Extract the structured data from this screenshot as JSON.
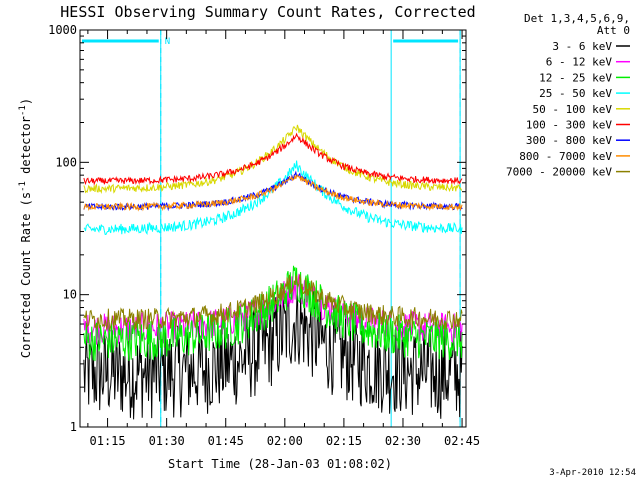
{
  "chart_data": {
    "type": "line",
    "title": "HESSI Observing Summary Count Rates, Corrected",
    "xlabel": "Start Time (28-Jan-03 01:08:02)",
    "ylabel": "Corrected Count Rate (s⁻¹ detector⁻¹)",
    "yscale": "log",
    "ylim": [
      1,
      1000
    ],
    "xlim_minutes": [
      68,
      166
    ],
    "x_ticks": [
      "01:15",
      "01:30",
      "01:45",
      "02:00",
      "02:15",
      "02:30",
      "02:45"
    ],
    "y_ticks": [
      "1",
      "10",
      "100",
      "1000"
    ],
    "legend_header": [
      "Det 1,3,4,5,6,9,",
      "Att 0"
    ],
    "legend_position": "right",
    "footer": "3-Apr-2010 12:54",
    "flag_label": "N",
    "night_periods": [
      [
        68,
        88.5
      ],
      [
        147,
        164.5
      ]
    ],
    "series": [
      {
        "name": "3 - 6 keV",
        "color": "#000000",
        "base": 2.5,
        "peak": 6.5,
        "noise": 0.35
      },
      {
        "name": "6 - 12 keV",
        "color": "#ff00ff",
        "base": 5.5,
        "peak": 12,
        "noise": 0.12
      },
      {
        "name": "12 - 25 keV",
        "color": "#00ee00",
        "base": 4.5,
        "peak": 13,
        "noise": 0.16
      },
      {
        "name": "25 - 50 keV",
        "color": "#00ffff",
        "base": 31,
        "peak": 95,
        "noise": 0.04
      },
      {
        "name": "50 - 100 keV",
        "color": "#d8d800",
        "base": 63,
        "peak": 185,
        "noise": 0.03
      },
      {
        "name": "100 - 300 keV",
        "color": "#ff0000",
        "base": 72,
        "peak": 160,
        "noise": 0.025
      },
      {
        "name": "300 - 800 keV",
        "color": "#0000ff",
        "base": 46,
        "peak": 82,
        "noise": 0.025
      },
      {
        "name": "800 - 7000 keV",
        "color": "#ff8c00",
        "base": 46,
        "peak": 80,
        "noise": 0.025
      },
      {
        "name": "7000 - 20000 keV",
        "color": "#8b8000",
        "base": 6.5,
        "peak": 13,
        "noise": 0.08
      }
    ]
  }
}
